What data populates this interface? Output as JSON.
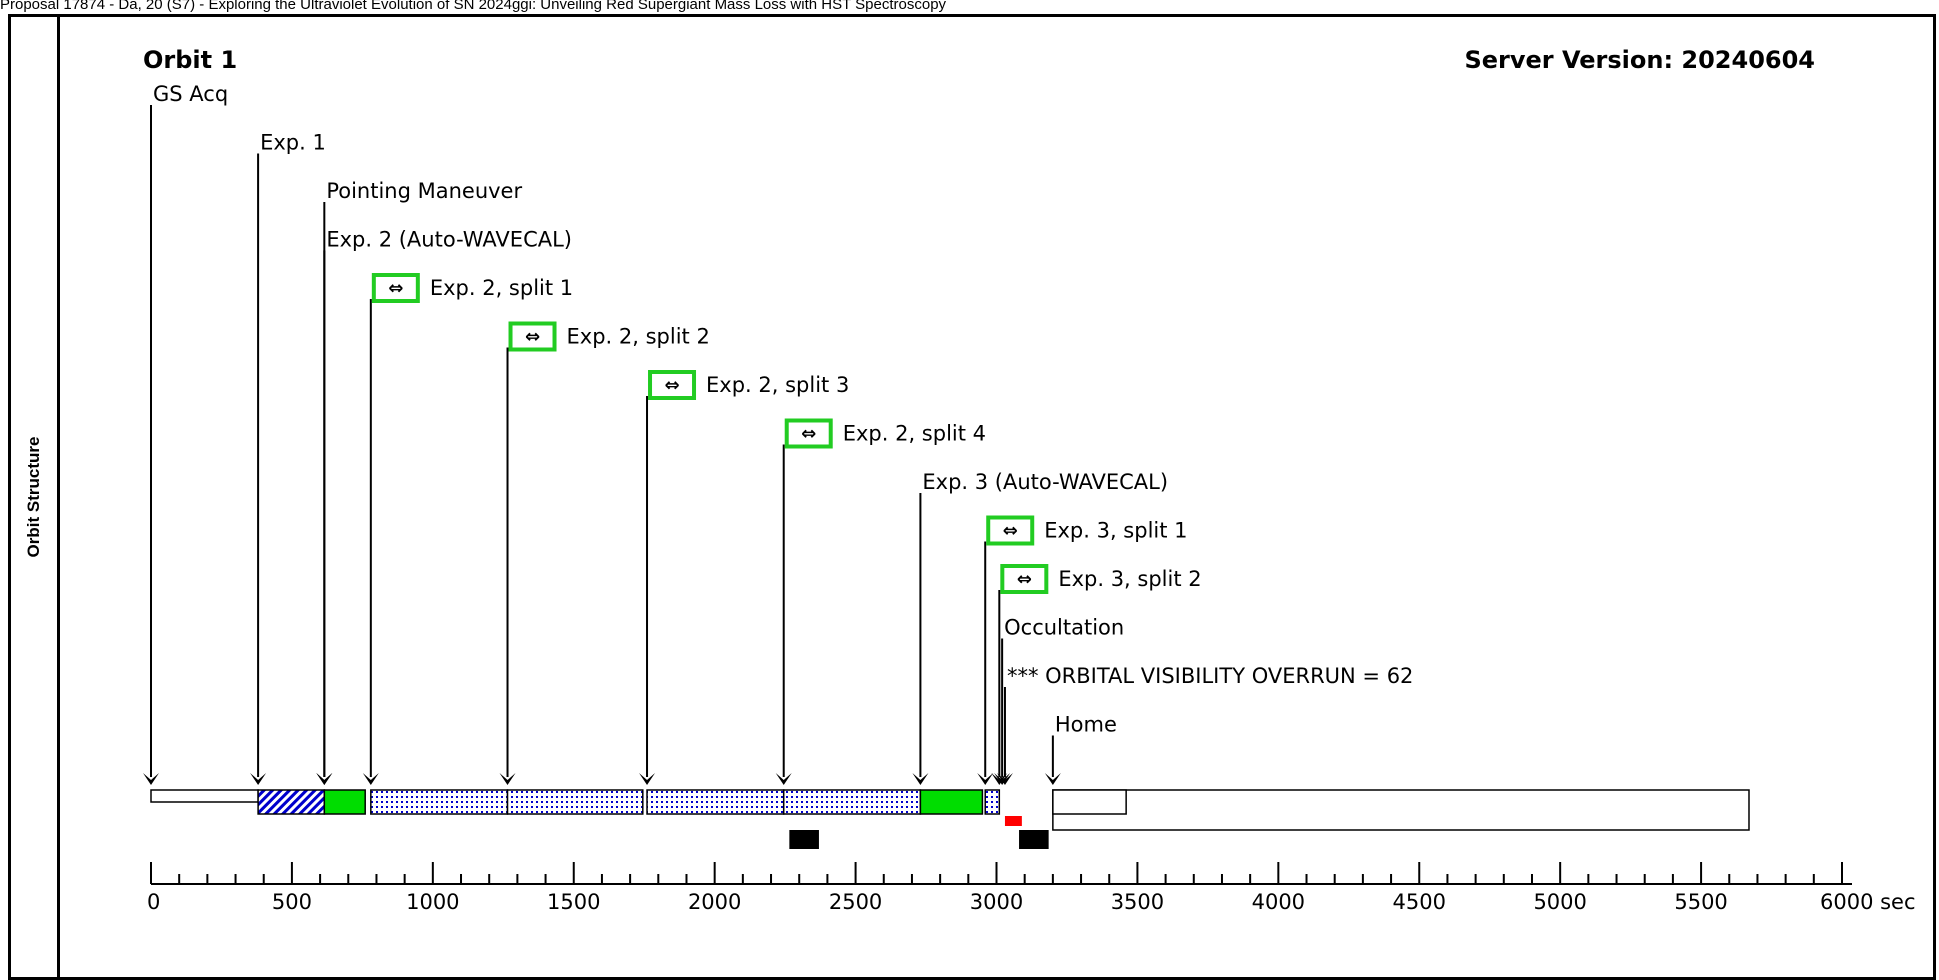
{
  "header": {
    "text": "Proposal 17874 - Da, 20 (S7) - Exploring the Ultraviolet Evolution of SN 2024ggi: Unveiling Red Supergiant Mass Loss with HST Spectroscopy"
  },
  "side_panel": {
    "label": "Orbit Structure"
  },
  "diagram": {
    "title": "Orbit 1",
    "server_version": "Server Version: 20240604",
    "axis": {
      "unit": "sec",
      "max": 6000,
      "major_ticks": [
        0,
        500,
        1000,
        1500,
        2000,
        2500,
        3000,
        3500,
        4000,
        4500,
        5000,
        5500,
        6000
      ],
      "tick_labels": [
        "0",
        "500",
        "1000",
        "1500",
        "2000",
        "2500",
        "3000",
        "3500",
        "4000",
        "4500",
        "5000",
        "5500",
        "6000 sec"
      ]
    },
    "events": [
      {
        "label": "GS Acq",
        "t": 0,
        "split_icon": false
      },
      {
        "label": "Exp. 1",
        "t": 380,
        "split_icon": false
      },
      {
        "label": "Pointing Maneuver",
        "t": 615,
        "split_icon": false
      },
      {
        "label": "Exp. 2 (Auto-WAVECAL)",
        "t": 615,
        "split_icon": false
      },
      {
        "label": "Exp. 2, split 1",
        "t": 780,
        "split_icon": true
      },
      {
        "label": "Exp. 2, split 2",
        "t": 1265,
        "split_icon": true
      },
      {
        "label": "Exp. 2, split 3",
        "t": 1760,
        "split_icon": true
      },
      {
        "label": "Exp. 2, split 4",
        "t": 2245,
        "split_icon": true
      },
      {
        "label": "Exp. 3 (Auto-WAVECAL)",
        "t": 2730,
        "split_icon": false
      },
      {
        "label": "Exp. 3, split 1",
        "t": 2960,
        "split_icon": true
      },
      {
        "label": "Exp. 3, split 2",
        "t": 3010,
        "split_icon": true
      },
      {
        "label": "Occultation",
        "t": 3020,
        "split_icon": false
      },
      {
        "label": "*** ORBITAL VISIBILITY OVERRUN = 62",
        "t": 3030,
        "split_icon": false
      },
      {
        "label": "Home",
        "t": 3200,
        "split_icon": false
      }
    ],
    "segments": [
      {
        "name": "gs-acq-segment",
        "start": 0,
        "end": 380,
        "fill": "white"
      },
      {
        "name": "exp1-segment",
        "start": 380,
        "end": 615,
        "fill": "hatch"
      },
      {
        "name": "exp2-wavecal-segment",
        "start": 615,
        "end": 760,
        "fill": "green"
      },
      {
        "name": "exp2-split1-segment",
        "start": 780,
        "end": 1265,
        "fill": "dots"
      },
      {
        "name": "exp2-split2-segment",
        "start": 1265,
        "end": 1745,
        "fill": "dots"
      },
      {
        "name": "exp2-split3-segment",
        "start": 1760,
        "end": 2245,
        "fill": "dots"
      },
      {
        "name": "exp2-split4-segment",
        "start": 2245,
        "end": 2730,
        "fill": "dots"
      },
      {
        "name": "exp3-wavecal-segment",
        "start": 2730,
        "end": 2950,
        "fill": "green"
      },
      {
        "name": "exp3-split1-segment",
        "start": 2960,
        "end": 3010,
        "fill": "dots"
      },
      {
        "name": "home-segment",
        "start": 3200,
        "end": 3460,
        "fill": "white"
      }
    ],
    "visibility_window": {
      "start": 3200,
      "end": 5670
    },
    "overrun_marker": {
      "start": 3030,
      "end": 3090
    },
    "blocks": [
      {
        "start": 2265,
        "end": 2370
      },
      {
        "start": 3080,
        "end": 3185
      }
    ],
    "colors": {
      "exposure_green": "#00dd00",
      "icon_border_green": "#22cc22",
      "dots_blue": "#0000cc",
      "overrun_red": "#ff0000",
      "line": "#000000"
    }
  }
}
